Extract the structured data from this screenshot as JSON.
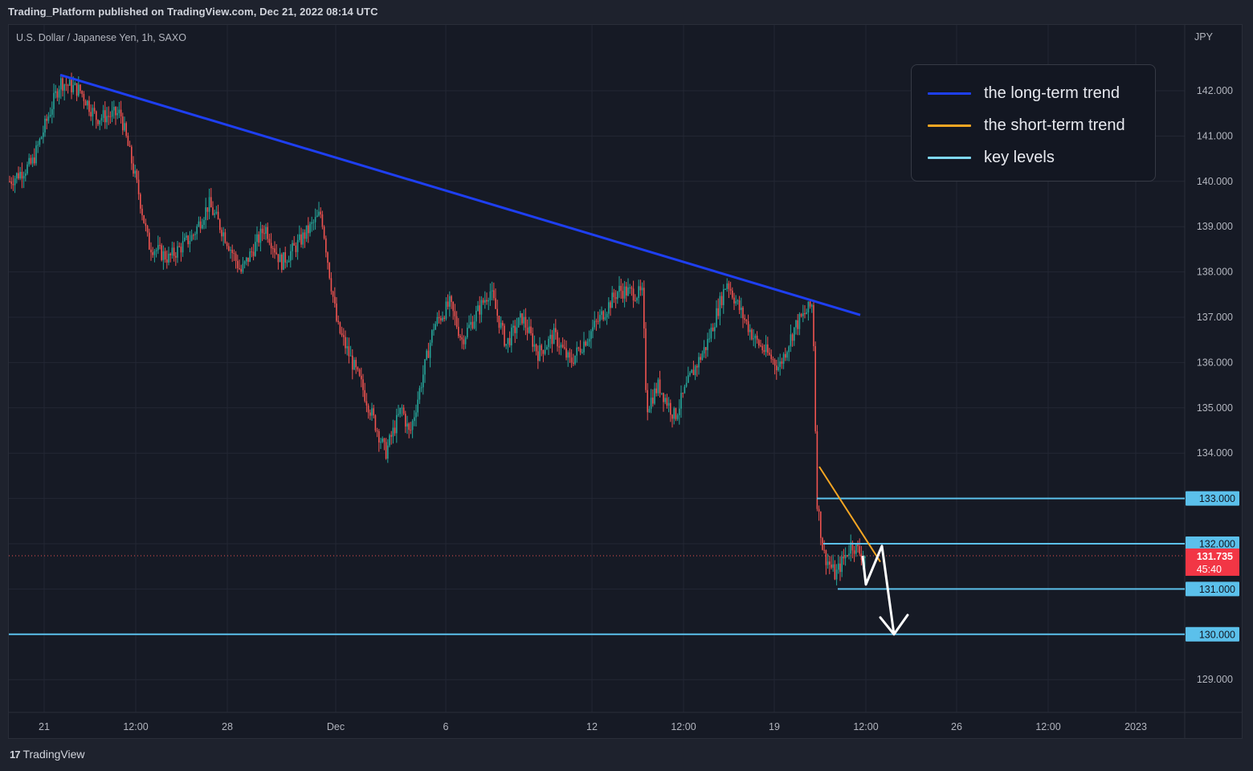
{
  "header": {
    "published": "Trading_Platform published on TradingView.com, Dec 21, 2022 08:14 UTC"
  },
  "chart": {
    "symbol_title": "U.S. Dollar / Japanese Yen, 1h, SAXO",
    "currency": "JPY"
  },
  "legend": {
    "items": [
      {
        "label": "the long-term trend",
        "color": "#1e3ff2"
      },
      {
        "label": "the short-term trend",
        "color": "#f5a623"
      },
      {
        "label": "key levels",
        "color": "#7fd8f5"
      }
    ]
  },
  "footer": {
    "brand": "TradingView",
    "logo": "17"
  },
  "chart_data": {
    "type": "candlestick",
    "title": "U.S. Dollar / Japanese Yen, 1h, SAXO",
    "y_unit": "JPY",
    "ylim": [
      128.6,
      143.1
    ],
    "y_ticks": [
      "142.000",
      "141.000",
      "140.000",
      "139.000",
      "138.000",
      "137.000",
      "136.000",
      "135.000",
      "134.000",
      "133.000",
      "132.000",
      "131.000",
      "130.000",
      "129.000"
    ],
    "x_ticks": [
      "21",
      "12:00",
      "28",
      "Dec",
      "6",
      "12",
      "12:00",
      "19",
      "12:00",
      "26",
      "12:00",
      "2023"
    ],
    "price_path": [
      [
        "21",
        140.0
      ],
      [
        "21 06:00",
        140.4
      ],
      [
        "21 12:00",
        142.2
      ],
      [
        "22",
        142.0
      ],
      [
        "22 12:00",
        141.4
      ],
      [
        "23",
        141.5
      ],
      [
        "23 06:00",
        139.8
      ],
      [
        "23 12:00",
        138.6
      ],
      [
        "24",
        138.3
      ],
      [
        "24 12:00",
        138.8
      ],
      [
        "25",
        139.5
      ],
      [
        "25 12:00",
        138.8
      ],
      [
        "26",
        138.0
      ],
      [
        "27",
        139.0
      ],
      [
        "27 12:00",
        138.2
      ],
      [
        "28",
        138.6
      ],
      [
        "29",
        139.3
      ],
      [
        "29 12:00",
        138.0
      ],
      [
        "30",
        136.8
      ],
      [
        "30 12:00",
        135.5
      ],
      [
        "Dec 1",
        134.0
      ],
      [
        "Dec 2",
        135.0
      ],
      [
        "Dec 2 12:00",
        134.4
      ],
      [
        "Dec 5",
        136.8
      ],
      [
        "6",
        137.3
      ],
      [
        "6 12:00",
        136.5
      ],
      [
        "7",
        137.6
      ],
      [
        "7 12:00",
        136.4
      ],
      [
        "8",
        137.0
      ],
      [
        "9",
        136.2
      ],
      [
        "9 12:00",
        136.6
      ],
      [
        "12",
        136.0
      ],
      [
        "12 12:00",
        137.6
      ],
      [
        "13",
        137.5
      ],
      [
        "13 12:00",
        135.0
      ],
      [
        "14",
        135.5
      ],
      [
        "14 12:00",
        134.8
      ],
      [
        "15",
        135.7
      ],
      [
        "15 12:00",
        136.4
      ],
      [
        "16",
        137.8
      ],
      [
        "16 12:00",
        137.2
      ],
      [
        "17",
        136.5
      ],
      [
        "18",
        135.9
      ],
      [
        "19",
        136.8
      ],
      [
        "19 12:00",
        137.3
      ],
      [
        "20",
        133.0
      ],
      [
        "20 06:00",
        131.8
      ],
      [
        "20 12:00",
        131.3
      ],
      [
        "20 18:00",
        132.0
      ],
      [
        "21 06:00",
        131.73
      ]
    ],
    "current_price": "131.735",
    "countdown": "45:40",
    "key_levels": [
      "133.000",
      "132.000",
      "131.000",
      "130.000"
    ],
    "long_term_trend": {
      "from": [
        142.35,
        "Nov 21"
      ],
      "to": [
        137.05,
        "Dec 21"
      ]
    },
    "short_term_trend": {
      "from": [
        133.7,
        "Dec 20"
      ],
      "to": [
        131.6,
        "Dec 21"
      ]
    },
    "projection": [
      131.73,
      131.1,
      131.95,
      130.0
    ],
    "grid": true,
    "legend_position": "top-right"
  }
}
